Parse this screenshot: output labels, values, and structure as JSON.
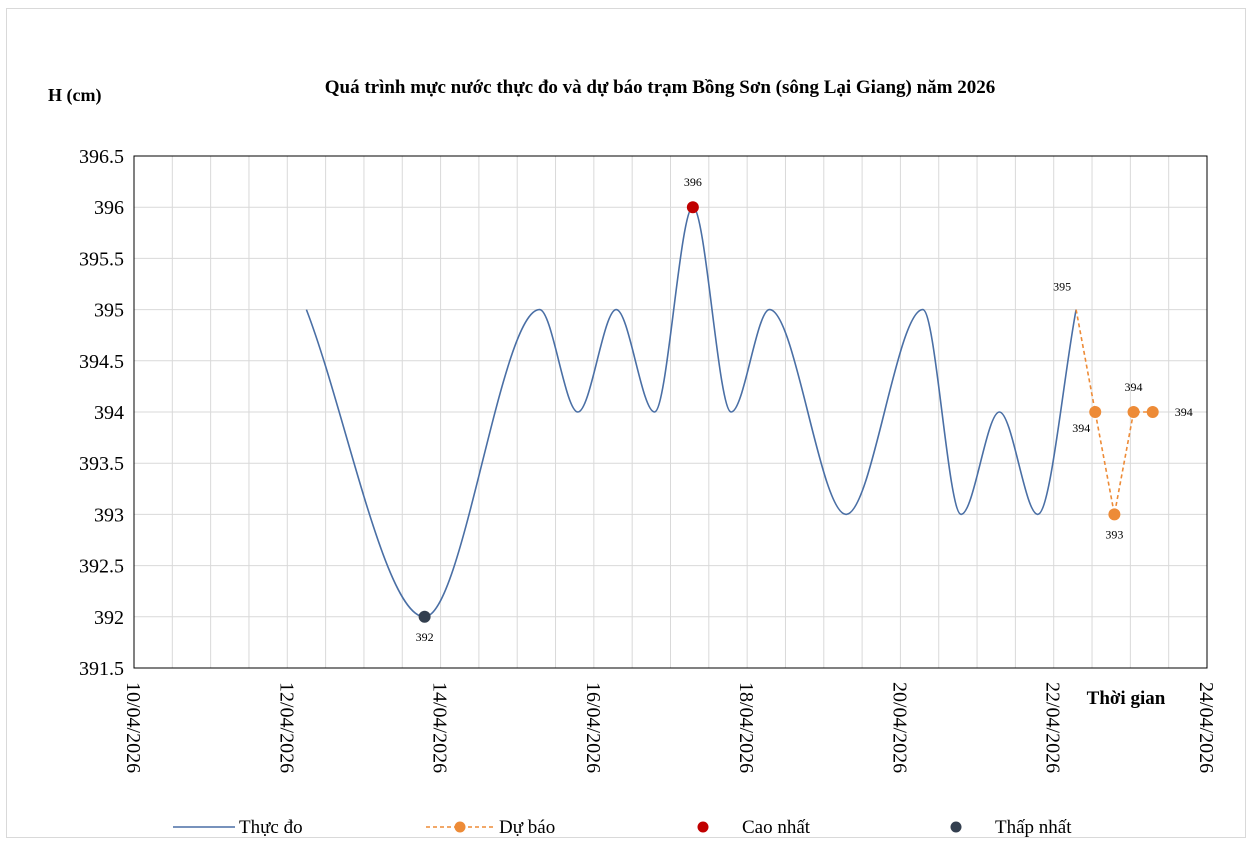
{
  "chart_data": {
    "type": "line",
    "title": "Quá trình mực nước thực đo và dự báo trạm Bồng Sơn (sông Lại Giang) năm 2026",
    "ylabel": "H (cm)",
    "xlabel": "Thời gian",
    "ylim": [
      391.5,
      396.5
    ],
    "y_ticks": [
      "391.5",
      "392",
      "392.5",
      "393",
      "393.5",
      "394",
      "394.5",
      "395",
      "395.5",
      "396",
      "396.5"
    ],
    "x_range": [
      "2026-04-10",
      "2026-04-24"
    ],
    "x_ticks": [
      "10/04/2026",
      "12/04/2026",
      "14/04/2026",
      "16/04/2026",
      "18/04/2026",
      "20/04/2026",
      "22/04/2026",
      "24/04/2026"
    ],
    "grid": true,
    "legend_position": "bottom",
    "colors": {
      "observed": "#4a6fa5",
      "forecast": "#ed8b37",
      "max": "#c00000",
      "min": "#333f4f",
      "grid": "#d9d9d9",
      "axis": "#000000"
    },
    "series": [
      {
        "name": "Thực đo",
        "style": "smooth-solid",
        "x": [
          "2026-04-12 06:00",
          "2026-04-13 19:00",
          "2026-04-15 07:00",
          "2026-04-15 19:00",
          "2026-04-16 07:00",
          "2026-04-16 19:00",
          "2026-04-17 07:00",
          "2026-04-17 19:00",
          "2026-04-18 07:00",
          "2026-04-19 07:00",
          "2026-04-20 07:00",
          "2026-04-20 19:00",
          "2026-04-21 07:00",
          "2026-04-21 19:00",
          "2026-04-22 07:00"
        ],
        "values": [
          395,
          392,
          395,
          394,
          395,
          394,
          396,
          394,
          395,
          393,
          395,
          393,
          394,
          393,
          395
        ]
      },
      {
        "name": "Dự báo",
        "style": "dashed-markers",
        "x": [
          "2026-04-22 07:00",
          "2026-04-22 13:00",
          "2026-04-22 19:00",
          "2026-04-23 01:00",
          "2026-04-23 07:00"
        ],
        "values": [
          395,
          394,
          393,
          394,
          394
        ]
      },
      {
        "name": "Cao nhất",
        "style": "marker",
        "x": [
          "2026-04-17 07:00"
        ],
        "values": [
          396
        ]
      },
      {
        "name": "Thấp nhất",
        "style": "marker",
        "x": [
          "2026-04-13 19:00"
        ],
        "values": [
          392
        ]
      }
    ],
    "data_labels": [
      {
        "x": "2026-04-13 19:00",
        "value": "392",
        "pos": "below"
      },
      {
        "x": "2026-04-17 07:00",
        "value": "396",
        "pos": "above"
      },
      {
        "x": "2026-04-22 07:00",
        "value": "395",
        "pos": "above-left"
      },
      {
        "x": "2026-04-22 13:00",
        "value": "394",
        "pos": "below-left"
      },
      {
        "x": "2026-04-22 19:00",
        "value": "393",
        "pos": "below"
      },
      {
        "x": "2026-04-23 01:00",
        "value": "394",
        "pos": "above"
      },
      {
        "x": "2026-04-23 07:00",
        "value": "394",
        "pos": "right"
      }
    ]
  }
}
